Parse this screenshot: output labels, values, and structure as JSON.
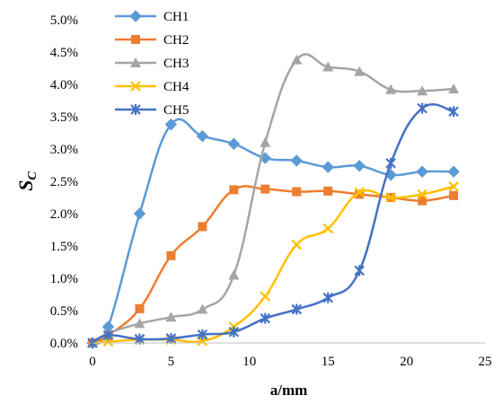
{
  "chart_data": {
    "type": "line",
    "title": "",
    "xlabel": "a/mm",
    "ylabel_main": "S",
    "ylabel_sub": "C",
    "xlim": [
      0,
      25
    ],
    "ylim": [
      0,
      5.0
    ],
    "x_ticks": [
      "0",
      "5",
      "10",
      "15",
      "20",
      "25"
    ],
    "y_ticks": [
      "0.0%",
      "0.5%",
      "1.0%",
      "1.5%",
      "2.0%",
      "2.5%",
      "3.0%",
      "3.5%",
      "4.0%",
      "4.5%",
      "5.0%"
    ],
    "grid": false,
    "legend_position": "top-left",
    "series": [
      {
        "name": "CH1",
        "color": "#5B9BD5",
        "marker": "diamond",
        "x": [
          0,
          1,
          3,
          5,
          7,
          9,
          11,
          13,
          15,
          17,
          19,
          21,
          23
        ],
        "y": [
          0.0,
          0.25,
          2.0,
          3.38,
          3.2,
          3.08,
          2.86,
          2.82,
          2.72,
          2.74,
          2.6,
          2.65,
          2.65
        ]
      },
      {
        "name": "CH2",
        "color": "#ED7D31",
        "marker": "square",
        "x": [
          0,
          1,
          3,
          5,
          7,
          9,
          11,
          13,
          15,
          17,
          19,
          21,
          23
        ],
        "y": [
          0.0,
          0.12,
          0.53,
          1.35,
          1.8,
          2.37,
          2.38,
          2.34,
          2.35,
          2.3,
          2.25,
          2.2,
          2.28
        ]
      },
      {
        "name": "CH3",
        "color": "#A5A5A5",
        "marker": "triangle",
        "x": [
          0,
          1,
          3,
          5,
          7,
          9,
          11,
          13,
          15,
          17,
          19,
          21,
          23
        ],
        "y": [
          0.0,
          0.15,
          0.3,
          0.4,
          0.52,
          1.05,
          3.1,
          4.38,
          4.27,
          4.2,
          3.92,
          3.9,
          3.93
        ]
      },
      {
        "name": "CH4",
        "color": "#FFC000",
        "marker": "x",
        "x": [
          0,
          1,
          3,
          5,
          7,
          9,
          11,
          13,
          15,
          17,
          19,
          21,
          23
        ],
        "y": [
          0.0,
          0.02,
          0.05,
          0.05,
          0.03,
          0.25,
          0.72,
          1.52,
          1.77,
          2.33,
          2.25,
          2.3,
          2.42
        ]
      },
      {
        "name": "CH5",
        "color": "#4472C4",
        "marker": "star",
        "x": [
          0,
          1,
          3,
          5,
          7,
          9,
          11,
          13,
          15,
          17,
          19,
          21,
          23
        ],
        "y": [
          0.0,
          0.12,
          0.06,
          0.07,
          0.13,
          0.17,
          0.38,
          0.52,
          0.7,
          1.12,
          2.78,
          3.63,
          3.58
        ]
      }
    ]
  }
}
